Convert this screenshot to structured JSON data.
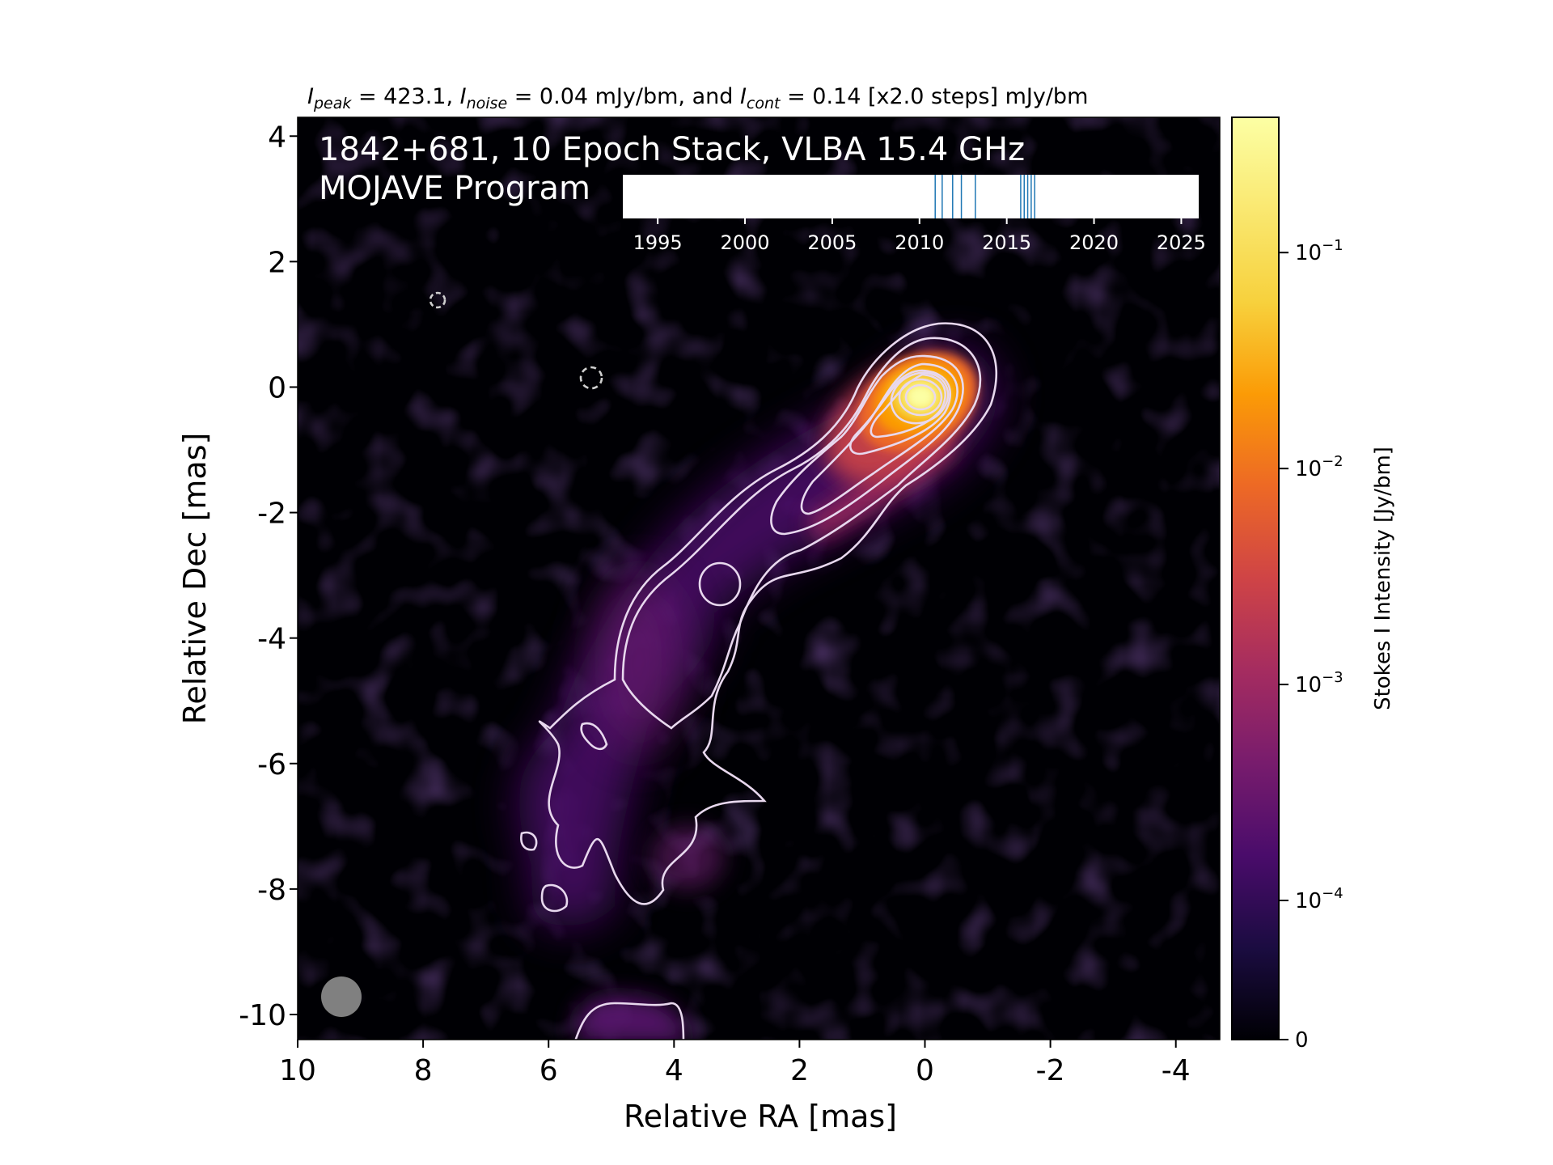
{
  "header": {
    "i_peak_sym": "I",
    "i_peak_sub": "peak",
    "i_peak_rest": " = 423.1, ",
    "i_noise_sym": "I",
    "i_noise_sub": "noise",
    "i_noise_rest": " = 0.04 mJy/bm, and ",
    "i_cont_sym": "I",
    "i_cont_sub": "cont",
    "i_cont_rest": " = 0.14 [x2.0 steps] mJy/bm"
  },
  "image": {
    "title_line1": "1842+681, 10 Epoch Stack, VLBA 15.4 GHz",
    "title_line2": "MOJAVE Program"
  },
  "colors": {
    "background_map": "#000004",
    "contour": "#e8d8ee",
    "epoch_line": "#1f77b4",
    "beam": "#808080",
    "colormap": "inferno"
  },
  "chart_data": {
    "type": "heatmap",
    "xlabel": "Relative RA [mas]",
    "ylabel": "Relative Dec [mas]",
    "xlim": [
      10,
      -4.7
    ],
    "ylim": [
      -10.4,
      4.3
    ],
    "x_ticks": [
      "10",
      "8",
      "6",
      "4",
      "2",
      "0",
      "-2",
      "-4"
    ],
    "x_tick_values": [
      10,
      8,
      6,
      4,
      2,
      0,
      -2,
      -4
    ],
    "y_ticks": [
      "4",
      "2",
      "0",
      "-2",
      "-4",
      "-6",
      "-8",
      "-10"
    ],
    "y_tick_values": [
      4,
      2,
      0,
      -2,
      -4,
      -6,
      -8,
      -10
    ],
    "colorbar": {
      "label": "Stokes I Intensity [Jy/bm]",
      "scale": "log",
      "range": [
        0,
        0.423
      ],
      "ticks": [
        {
          "value": 0.1,
          "base": "10",
          "exp": "−1"
        },
        {
          "value": 0.01,
          "base": "10",
          "exp": "−2"
        },
        {
          "value": 0.001,
          "base": "10",
          "exp": "−3"
        },
        {
          "value": 0.0001,
          "base": "10",
          "exp": "−4"
        },
        {
          "value": 0,
          "base": "0",
          "exp": ""
        }
      ]
    },
    "core_position": [
      0,
      -0.15
    ],
    "jet_ridge": [
      [
        0,
        -0.15
      ],
      [
        1.5,
        -1.9
      ],
      [
        3.3,
        -3.1
      ],
      [
        4.2,
        -4.5
      ],
      [
        4.6,
        -6.5
      ],
      [
        4.0,
        -7.6
      ],
      [
        5.0,
        -10.0
      ]
    ],
    "epoch_timeline": {
      "xlim": [
        1993,
        2026
      ],
      "ticks": [
        1995,
        2000,
        2005,
        2010,
        2015,
        2020,
        2025
      ],
      "epochs": [
        2010.9,
        2011.3,
        2011.9,
        2012.4,
        2013.2,
        2015.8,
        2016.0,
        2016.2,
        2016.4,
        2016.6
      ]
    },
    "beam": {
      "ra_center": 9.35,
      "dec_center": -9.7,
      "diameter_mas": 0.65
    }
  }
}
